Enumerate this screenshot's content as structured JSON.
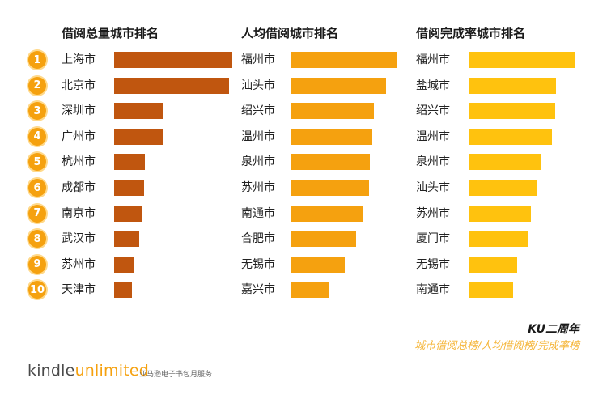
{
  "chart_data": [
    {
      "type": "bar",
      "orientation": "horizontal",
      "title": "借阅总量城市排名",
      "categories": [
        "上海市",
        "北京市",
        "深圳市",
        "广州市",
        "杭州市",
        "成都市",
        "南京市",
        "武汉市",
        "苏州市",
        "天津市"
      ],
      "values": [
        100,
        97,
        42,
        41,
        26,
        25,
        23,
        21,
        17,
        15
      ],
      "color": "#c0560f"
    },
    {
      "type": "bar",
      "orientation": "horizontal",
      "title": "人均借阅城市排名",
      "categories": [
        "福州市",
        "汕头市",
        "绍兴市",
        "温州市",
        "泉州市",
        "苏州市",
        "南通市",
        "合肥市",
        "无锡市",
        "嘉兴市"
      ],
      "values": [
        100,
        89,
        78,
        76,
        74,
        73,
        67,
        61,
        50,
        35
      ],
      "color": "#f5a10f"
    },
    {
      "type": "bar",
      "orientation": "horizontal",
      "title": "借阅完成率城市排名",
      "categories": [
        "福州市",
        "盐城市",
        "绍兴市",
        "温州市",
        "泉州市",
        "汕头市",
        "苏州市",
        "厦门市",
        "无锡市",
        "南通市"
      ],
      "values": [
        100,
        82,
        81,
        78,
        67,
        64,
        58,
        56,
        45,
        41
      ],
      "color": "#ffc20e"
    }
  ],
  "ranks": [
    "1",
    "2",
    "3",
    "4",
    "5",
    "6",
    "7",
    "8",
    "9",
    "10"
  ],
  "footer": {
    "title": "KU二周年",
    "subtitle": "城市借阅总榜/人均借阅榜/完成率榜"
  },
  "brand": {
    "kindle": "kindle",
    "unlimited": "unlimited",
    "tagline": "亚马逊电子书包月服务"
  }
}
